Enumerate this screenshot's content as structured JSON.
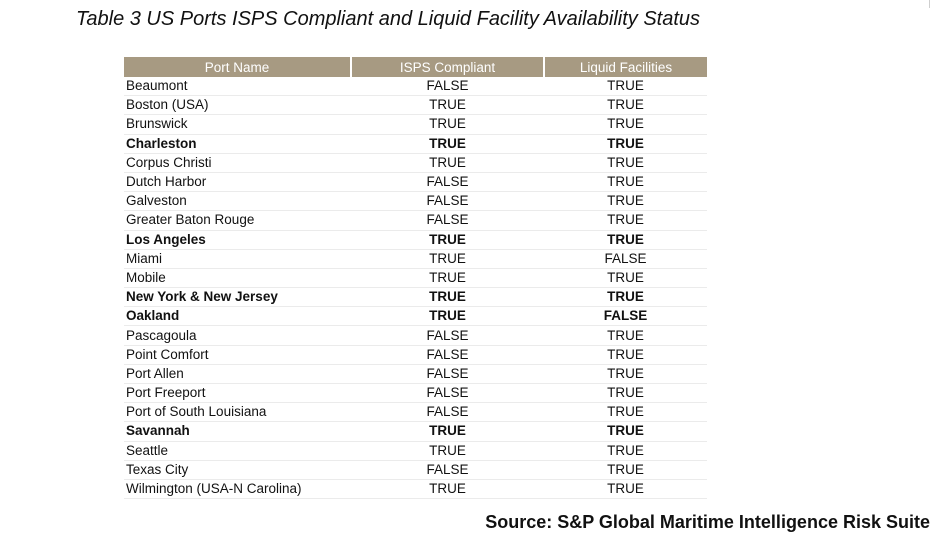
{
  "caption": "Table 3 US Ports ISPS Compliant and Liquid Facility Availability Status",
  "columns": [
    "Port Name",
    "ISPS Compliant",
    "Liquid Facilities"
  ],
  "rows": [
    {
      "port": "Beaumont",
      "isps": "FALSE",
      "liquid": "TRUE",
      "bold": false
    },
    {
      "port": "Boston (USA)",
      "isps": "TRUE",
      "liquid": "TRUE",
      "bold": false
    },
    {
      "port": "Brunswick",
      "isps": "TRUE",
      "liquid": "TRUE",
      "bold": false
    },
    {
      "port": "Charleston",
      "isps": "TRUE",
      "liquid": "TRUE",
      "bold": true
    },
    {
      "port": "Corpus Christi",
      "isps": "TRUE",
      "liquid": "TRUE",
      "bold": false
    },
    {
      "port": "Dutch Harbor",
      "isps": "FALSE",
      "liquid": "TRUE",
      "bold": false
    },
    {
      "port": "Galveston",
      "isps": "FALSE",
      "liquid": "TRUE",
      "bold": false
    },
    {
      "port": "Greater Baton Rouge",
      "isps": "FALSE",
      "liquid": "TRUE",
      "bold": false
    },
    {
      "port": "Los Angeles",
      "isps": "TRUE",
      "liquid": "TRUE",
      "bold": true
    },
    {
      "port": "Miami",
      "isps": "TRUE",
      "liquid": "FALSE",
      "bold": false
    },
    {
      "port": "Mobile",
      "isps": "TRUE",
      "liquid": "TRUE",
      "bold": false
    },
    {
      "port": "New York & New Jersey",
      "isps": "TRUE",
      "liquid": "TRUE",
      "bold": true
    },
    {
      "port": "Oakland",
      "isps": "TRUE",
      "liquid": "FALSE",
      "bold": true
    },
    {
      "port": "Pascagoula",
      "isps": "FALSE",
      "liquid": "TRUE",
      "bold": false
    },
    {
      "port": "Point Comfort",
      "isps": "FALSE",
      "liquid": "TRUE",
      "bold": false
    },
    {
      "port": "Port Allen",
      "isps": "FALSE",
      "liquid": "TRUE",
      "bold": false
    },
    {
      "port": "Port Freeport",
      "isps": "FALSE",
      "liquid": "TRUE",
      "bold": false
    },
    {
      "port": "Port of South Louisiana",
      "isps": "FALSE",
      "liquid": "TRUE",
      "bold": false
    },
    {
      "port": "Savannah",
      "isps": "TRUE",
      "liquid": "TRUE",
      "bold": true
    },
    {
      "port": "Seattle",
      "isps": "TRUE",
      "liquid": "TRUE",
      "bold": false
    },
    {
      "port": "Texas City",
      "isps": "FALSE",
      "liquid": "TRUE",
      "bold": false
    },
    {
      "port": "Wilmington (USA-N Carolina)",
      "isps": "TRUE",
      "liquid": "TRUE",
      "bold": false
    }
  ],
  "source": "Source: S&P Global Maritime Intelligence Risk Suite",
  "colors": {
    "header_bg": "#a79a82",
    "header_text": "#ffffff",
    "row_divider": "#ebebeb"
  }
}
